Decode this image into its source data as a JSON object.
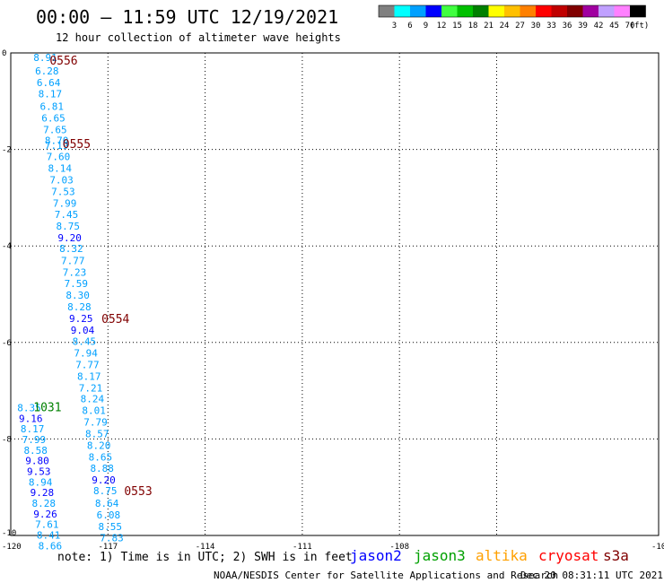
{
  "header": {
    "title": "00:00 – 11:59 UTC 12/19/2021",
    "subtitle": "12 hour collection of altimeter wave heights"
  },
  "colorbar": {
    "labels": [
      "3",
      "6",
      "9",
      "12",
      "15",
      "18",
      "21",
      "24",
      "27",
      "30",
      "33",
      "36",
      "39",
      "42",
      "45",
      "70"
    ],
    "unit": "(ft)",
    "colors": [
      "#808080",
      "#00ffff",
      "#00a0ff",
      "#0000ff",
      "#40ff40",
      "#00c000",
      "#008000",
      "#ffff00",
      "#ffc000",
      "#ff8000",
      "#ff0000",
      "#c00000",
      "#800000",
      "#a000a0",
      "#c0a0ff",
      "#ff80ff",
      "#000000"
    ]
  },
  "footer": {
    "note": "note: 1) Time is in UTC; 2) SWH is in feet",
    "credit": "NOAA/NESDIS Center for Satellite Applications and Research",
    "timestamp": "Dec 20 08:31:11 UTC 2021",
    "satellites": [
      {
        "name": "jason2",
        "color": "#0000ff"
      },
      {
        "name": "jason3",
        "color": "#00a000"
      },
      {
        "name": "altika",
        "color": "#ffa000"
      },
      {
        "name": "cryosat",
        "color": "#ff0000"
      },
      {
        "name": "s3a",
        "color": "#800000"
      }
    ]
  },
  "chart_data": {
    "type": "scatter",
    "xlim": [
      -120,
      -100
    ],
    "ylim": [
      -10,
      0
    ],
    "xticks": [
      "-120",
      "-117",
      "-114",
      "-111",
      "-108",
      "-10"
    ],
    "yticks": [
      "0",
      "-2",
      "-4",
      "-6",
      "-8",
      "-10"
    ],
    "grid": true,
    "series": [
      {
        "label": "0556",
        "label_x": -118.8,
        "label_y": -0.15,
        "label_color": "#800000",
        "points": [
          {
            "x": -119.3,
            "y": -0.09,
            "v": "8.91",
            "c": "#00a0ff"
          },
          {
            "x": -119.25,
            "y": -0.37,
            "v": "6.28",
            "c": "#00a0ff"
          },
          {
            "x": -119.2,
            "y": -0.61,
            "v": "6.64",
            "c": "#00a0ff"
          },
          {
            "x": -119.15,
            "y": -0.85,
            "v": "8.17",
            "c": "#00a0ff"
          },
          {
            "x": -119.1,
            "y": -1.11,
            "v": "6.81",
            "c": "#00a0ff"
          },
          {
            "x": -119.05,
            "y": -1.35,
            "v": "6.65",
            "c": "#00a0ff"
          },
          {
            "x": -119.0,
            "y": -1.59,
            "v": "7.65",
            "c": "#00a0ff"
          },
          {
            "x": -118.95,
            "y": -1.81,
            "v": "8.70",
            "c": "#00a0ff"
          }
        ]
      },
      {
        "label": "0555",
        "label_x": -118.4,
        "label_y": -1.88,
        "label_color": "#800000",
        "points": [
          {
            "x": -118.95,
            "y": -1.91,
            "v": "7.19",
            "c": "#00a0ff"
          },
          {
            "x": -118.9,
            "y": -2.15,
            "v": "7.60",
            "c": "#00a0ff"
          },
          {
            "x": -118.85,
            "y": -2.39,
            "v": "8.14",
            "c": "#00a0ff"
          },
          {
            "x": -118.8,
            "y": -2.63,
            "v": "7.03",
            "c": "#00a0ff"
          },
          {
            "x": -118.75,
            "y": -2.87,
            "v": "7.53",
            "c": "#00a0ff"
          },
          {
            "x": -118.7,
            "y": -3.11,
            "v": "7.99",
            "c": "#00a0ff"
          },
          {
            "x": -118.65,
            "y": -3.35,
            "v": "7.45",
            "c": "#00a0ff"
          },
          {
            "x": -118.6,
            "y": -3.59,
            "v": "8.75",
            "c": "#00a0ff"
          },
          {
            "x": -118.55,
            "y": -3.83,
            "v": "9.20",
            "c": "#0000ff"
          },
          {
            "x": -118.5,
            "y": -4.05,
            "v": "8.32",
            "c": "#00a0ff"
          },
          {
            "x": -118.45,
            "y": -4.3,
            "v": "7.77",
            "c": "#00a0ff"
          },
          {
            "x": -118.4,
            "y": -4.54,
            "v": "7.23",
            "c": "#00a0ff"
          },
          {
            "x": -118.35,
            "y": -4.78,
            "v": "7.59",
            "c": "#00a0ff"
          },
          {
            "x": -118.3,
            "y": -5.02,
            "v": "8.30",
            "c": "#00a0ff"
          },
          {
            "x": -118.25,
            "y": -5.26,
            "v": "8.28",
            "c": "#00a0ff"
          }
        ]
      },
      {
        "label": "0554",
        "label_x": -117.2,
        "label_y": -5.5,
        "label_color": "#800000",
        "points": [
          {
            "x": -118.2,
            "y": -5.5,
            "v": "9.25",
            "c": "#0000ff"
          },
          {
            "x": -118.15,
            "y": -5.74,
            "v": "9.04",
            "c": "#0000ff"
          },
          {
            "x": -118.1,
            "y": -5.98,
            "v": "8.45",
            "c": "#00a0ff"
          },
          {
            "x": -118.05,
            "y": -6.22,
            "v": "7.94",
            "c": "#00a0ff"
          },
          {
            "x": -118.0,
            "y": -6.46,
            "v": "7.77",
            "c": "#00a0ff"
          },
          {
            "x": -117.95,
            "y": -6.7,
            "v": "8.17",
            "c": "#00a0ff"
          },
          {
            "x": -117.9,
            "y": -6.94,
            "v": "7.21",
            "c": "#00a0ff"
          },
          {
            "x": -117.85,
            "y": -7.17,
            "v": "8.24",
            "c": "#00a0ff"
          },
          {
            "x": -117.8,
            "y": -7.41,
            "v": "8.01",
            "c": "#00a0ff"
          },
          {
            "x": -117.75,
            "y": -7.65,
            "v": "7.79",
            "c": "#00a0ff"
          },
          {
            "x": -117.7,
            "y": -7.89,
            "v": "8.57",
            "c": "#00a0ff"
          },
          {
            "x": -117.65,
            "y": -8.13,
            "v": "8.20",
            "c": "#00a0ff"
          },
          {
            "x": -117.6,
            "y": -8.37,
            "v": "8.65",
            "c": "#00a0ff"
          },
          {
            "x": -117.55,
            "y": -8.61,
            "v": "8.88",
            "c": "#00a0ff"
          },
          {
            "x": -117.5,
            "y": -8.85,
            "v": "9.20",
            "c": "#0000ff"
          },
          {
            "x": -117.45,
            "y": -9.07,
            "v": "8.75",
            "c": "#00a0ff"
          }
        ]
      },
      {
        "label": "0553",
        "label_x": -116.5,
        "label_y": -9.07,
        "label_color": "#800000",
        "points": [
          {
            "x": -117.4,
            "y": -9.33,
            "v": "8.64",
            "c": "#00a0ff"
          },
          {
            "x": -117.35,
            "y": -9.57,
            "v": "6.08",
            "c": "#00a0ff"
          },
          {
            "x": -117.3,
            "y": -9.81,
            "v": "8.55",
            "c": "#00a0ff"
          },
          {
            "x": -117.25,
            "y": -10.05,
            "v": "7.83",
            "c": "#00a0ff"
          }
        ]
      },
      {
        "label": "1031",
        "label_x": -119.3,
        "label_y": -7.33,
        "label_color": "#008000",
        "points": [
          {
            "x": -119.8,
            "y": -7.35,
            "v": "8.35",
            "c": "#00a0ff"
          },
          {
            "x": -119.75,
            "y": -7.57,
            "v": "9.16",
            "c": "#0000ff"
          },
          {
            "x": -119.7,
            "y": -7.79,
            "v": "8.17",
            "c": "#00a0ff"
          },
          {
            "x": -119.65,
            "y": -8.01,
            "v": "7.99",
            "c": "#00a0ff"
          },
          {
            "x": -119.6,
            "y": -8.23,
            "v": "8.58",
            "c": "#00a0ff"
          },
          {
            "x": -119.55,
            "y": -8.45,
            "v": "9.80",
            "c": "#0000ff"
          },
          {
            "x": -119.5,
            "y": -8.67,
            "v": "9.53",
            "c": "#0000ff"
          },
          {
            "x": -119.45,
            "y": -8.89,
            "v": "8.94",
            "c": "#00a0ff"
          },
          {
            "x": -119.4,
            "y": -9.11,
            "v": "9.28",
            "c": "#0000ff"
          },
          {
            "x": -119.35,
            "y": -9.33,
            "v": "8.28",
            "c": "#00a0ff"
          },
          {
            "x": -119.3,
            "y": -9.55,
            "v": "9.26",
            "c": "#0000ff"
          },
          {
            "x": -119.25,
            "y": -9.77,
            "v": "7.61",
            "c": "#00a0ff"
          },
          {
            "x": -119.2,
            "y": -9.99,
            "v": "8.41",
            "c": "#00a0ff"
          },
          {
            "x": -119.15,
            "y": -10.21,
            "v": "8.66",
            "c": "#00a0ff"
          }
        ]
      }
    ]
  }
}
